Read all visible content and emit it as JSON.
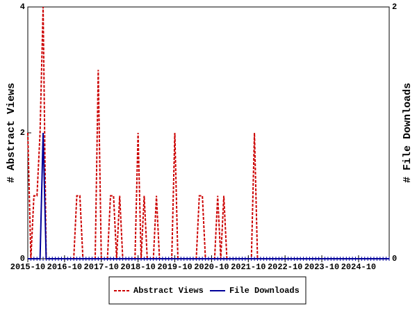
{
  "chart_data": {
    "type": "line",
    "y_label": "# Abstract Views",
    "y2_label": "# File Downloads",
    "x": [
      "2015-10",
      "2015-11",
      "2015-12",
      "2016-01",
      "2016-02",
      "2016-03",
      "2016-04",
      "2016-05",
      "2016-06",
      "2016-07",
      "2016-08",
      "2016-09",
      "2016-10",
      "2016-11",
      "2016-12",
      "2017-01",
      "2017-02",
      "2017-03",
      "2017-04",
      "2017-05",
      "2017-06",
      "2017-07",
      "2017-08",
      "2017-09",
      "2017-10",
      "2017-11",
      "2017-12",
      "2018-01",
      "2018-02",
      "2018-03",
      "2018-04",
      "2018-05",
      "2018-06",
      "2018-07",
      "2018-08",
      "2018-09",
      "2018-10",
      "2018-11",
      "2018-12",
      "2019-01",
      "2019-02",
      "2019-03",
      "2019-04",
      "2019-05",
      "2019-06",
      "2019-07",
      "2019-08",
      "2019-09",
      "2019-10",
      "2019-11",
      "2019-12",
      "2020-01",
      "2020-02",
      "2020-03",
      "2020-04",
      "2020-05",
      "2020-06",
      "2020-07",
      "2020-08",
      "2020-09",
      "2020-10",
      "2020-11",
      "2020-12",
      "2021-01",
      "2021-02",
      "2021-03",
      "2021-04",
      "2021-05",
      "2021-06",
      "2021-07",
      "2021-08",
      "2021-09",
      "2021-10",
      "2021-11",
      "2021-12",
      "2022-01",
      "2022-02",
      "2022-03",
      "2022-04",
      "2022-05",
      "2022-06",
      "2022-07",
      "2022-08",
      "2022-09",
      "2022-10",
      "2022-11",
      "2022-12",
      "2023-01",
      "2023-02",
      "2023-03",
      "2023-04",
      "2023-05",
      "2023-06",
      "2023-07",
      "2023-08",
      "2023-09",
      "2023-10",
      "2023-11",
      "2023-12",
      "2024-01",
      "2024-02",
      "2024-03",
      "2024-04",
      "2024-05",
      "2024-06",
      "2024-07",
      "2024-08",
      "2024-09",
      "2024-10",
      "2024-11",
      "2024-12",
      "2025-01",
      "2025-02",
      "2025-03",
      "2025-04",
      "2025-05",
      "2025-06",
      "2025-07",
      "2025-08"
    ],
    "xticks": [
      "2015-10",
      "2016-10",
      "2017-10",
      "2018-10",
      "2019-10",
      "2020-10",
      "2021-10",
      "2022-10",
      "2023-10",
      "2024-10"
    ],
    "ylim": [
      0,
      4
    ],
    "yticks": [
      0,
      2,
      4
    ],
    "y2lim": [
      0,
      2
    ],
    "y2ticks": [
      0,
      2
    ],
    "series": [
      {
        "name": "Abstract Views",
        "color": "#cc0000",
        "dash": true,
        "values": [
          2,
          0,
          1,
          1,
          2,
          4,
          0,
          0,
          0,
          0,
          0,
          0,
          0,
          0,
          0,
          0,
          1,
          1,
          0,
          0,
          0,
          0,
          0,
          3,
          0,
          0,
          0,
          1,
          1,
          0,
          1,
          0,
          0,
          0,
          0,
          0,
          2,
          0,
          1,
          0,
          0,
          0,
          1,
          0,
          0,
          0,
          0,
          0,
          2,
          0,
          0,
          0,
          0,
          0,
          0,
          0,
          1,
          1,
          0,
          0,
          0,
          0,
          1,
          0,
          1,
          0,
          0,
          0,
          0,
          0,
          0,
          0,
          0,
          0,
          2,
          0,
          0,
          0,
          0,
          0,
          0,
          0,
          0,
          0,
          0,
          0,
          0,
          0,
          0,
          0,
          0,
          0,
          0,
          0,
          0,
          0,
          0,
          0,
          0,
          0,
          0,
          0,
          0,
          0,
          0,
          0,
          0,
          0,
          0,
          0,
          0,
          0,
          0,
          0,
          0,
          0,
          0,
          0,
          0
        ]
      },
      {
        "name": "File Downloads",
        "color": "#000099",
        "dash": false,
        "axis": "y2",
        "values": [
          0,
          0,
          0,
          0,
          0,
          1,
          0,
          0,
          0,
          0,
          0,
          0,
          0,
          0,
          0,
          0,
          0,
          0,
          0,
          0,
          0,
          0,
          0,
          0,
          0,
          0,
          0,
          0,
          0,
          0,
          0,
          0,
          0,
          0,
          0,
          0,
          0,
          0,
          0,
          0,
          0,
          0,
          0,
          0,
          0,
          0,
          0,
          0,
          0,
          0,
          0,
          0,
          0,
          0,
          0,
          0,
          0,
          0,
          0,
          0,
          0,
          0,
          0,
          0,
          0,
          0,
          0,
          0,
          0,
          0,
          0,
          0,
          0,
          0,
          0,
          0,
          0,
          0,
          0,
          0,
          0,
          0,
          0,
          0,
          0,
          0,
          0,
          0,
          0,
          0,
          0,
          0,
          0,
          0,
          0,
          0,
          0,
          0,
          0,
          0,
          0,
          0,
          0,
          0,
          0,
          0,
          0,
          0,
          0,
          0,
          0,
          0,
          0,
          0,
          0,
          0,
          0,
          0,
          0
        ]
      }
    ]
  }
}
